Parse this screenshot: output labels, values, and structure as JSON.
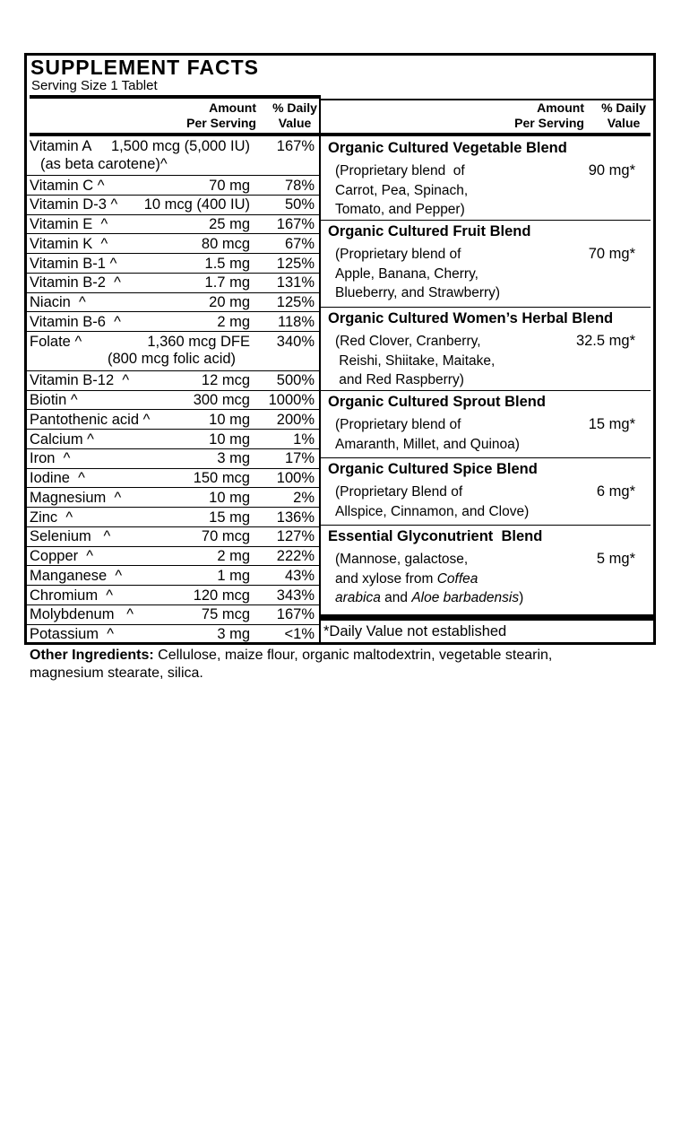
{
  "header": {
    "title": "SUPPLEMENT FACTS",
    "serving_size": "Serving Size 1 Tablet"
  },
  "column_headers": {
    "amount": [
      "Amount",
      "Per Serving"
    ],
    "daily_value": [
      "% Daily",
      "Value"
    ]
  },
  "nutrients": [
    {
      "name": "Vitamin A",
      "amount": "1,500 mcg (5,000 IU)",
      "daily_value": "167%",
      "note": "(as beta carotene)^"
    },
    {
      "name": "Vitamin C ^",
      "amount": "70 mg",
      "daily_value": "78%"
    },
    {
      "name": "Vitamin D-3 ^",
      "amount": "10 mcg (400 IU)",
      "daily_value": "50%"
    },
    {
      "name": "Vitamin E  ^",
      "amount": "25 mg",
      "daily_value": "167%"
    },
    {
      "name": "Vitamin K  ^",
      "amount": "80 mcg",
      "daily_value": "67%"
    },
    {
      "name": "Vitamin B-1 ^",
      "amount": "1.5 mg",
      "daily_value": "125%"
    },
    {
      "name": "Vitamin B-2  ^",
      "amount": "1.7 mg",
      "daily_value": "131%"
    },
    {
      "name": "Niacin  ^",
      "amount": "20 mg",
      "daily_value": "125%"
    },
    {
      "name": "Vitamin B-6  ^",
      "amount": "2 mg",
      "daily_value": "118%"
    },
    {
      "name": "Folate ^",
      "amount": "1,360 mcg DFE",
      "daily_value": "340%",
      "note": "(800 mcg folic acid)"
    },
    {
      "name": "Vitamin B-12  ^",
      "amount": "12 mcg",
      "daily_value": "500%"
    },
    {
      "name": "Biotin ^",
      "amount": "300 mcg",
      "daily_value": "1000%"
    },
    {
      "name": "Pantothenic acid ^",
      "amount": "10 mg",
      "daily_value": "200%"
    },
    {
      "name": "Calcium ^",
      "amount": "10 mg",
      "daily_value": "1%"
    },
    {
      "name": "Iron  ^",
      "amount": "3 mg",
      "daily_value": "17%"
    },
    {
      "name": "Iodine  ^",
      "amount": "150 mcg",
      "daily_value": "100%"
    },
    {
      "name": "Magnesium  ^",
      "amount": "10 mg",
      "daily_value": "2%"
    },
    {
      "name": "Zinc  ^",
      "amount": "15 mg",
      "daily_value": "136%"
    },
    {
      "name": "Selenium   ^",
      "amount": "70 mcg",
      "daily_value": "127%"
    },
    {
      "name": "Copper  ^",
      "amount": "2 mg",
      "daily_value": "222%"
    },
    {
      "name": "Manganese  ^",
      "amount": "1 mg",
      "daily_value": "43%"
    },
    {
      "name": "Chromium  ^",
      "amount": "120 mcg",
      "daily_value": "343%"
    },
    {
      "name": "Molybdenum   ^",
      "amount": "75 mcg",
      "daily_value": "167%"
    },
    {
      "name": "Potassium  ^",
      "amount": "3 mg",
      "daily_value": "<1%"
    }
  ],
  "blends": [
    {
      "name": "Organic Cultured Vegetable Blend",
      "amount": "90 mg*",
      "description": [
        "(Proprietary blend  of",
        "Carrot, Pea, Spinach,",
        "Tomato, and Pepper)"
      ]
    },
    {
      "name": "Organic Cultured Fruit Blend",
      "amount": "70 mg*",
      "description": [
        "(Proprietary blend of",
        "Apple, Banana, Cherry,",
        "Blueberry, and Strawberry)"
      ]
    },
    {
      "name": "Organic Cultured Women’s Herbal Blend",
      "amount": "32.5 mg*",
      "description": [
        "(Red Clover, Cranberry,",
        " Reishi, Shiitake, Maitake,",
        " and Red Raspberry)"
      ]
    },
    {
      "name": "Organic Cultured Sprout Blend",
      "amount": "15 mg*",
      "description": [
        "(Proprietary blend of",
        "Amaranth, Millet, and Quinoa)"
      ]
    },
    {
      "name": "Organic Cultured Spice Blend",
      "amount": "6 mg*",
      "description": [
        "(Proprietary Blend of",
        "Allspice, Cinnamon, and Clove)"
      ]
    },
    {
      "name": "Essential Glyconutrient  Blend",
      "amount": "5 mg*",
      "description": [
        "(Mannose, galactose,",
        [
          {
            "text": "and xylose from "
          },
          {
            "text": "Coffea",
            "italic": true
          }
        ],
        [
          {
            "text": "arabica",
            "italic": true
          },
          {
            "text": " and "
          },
          {
            "text": "Aloe barbadensis",
            "italic": true
          },
          {
            "text": ")"
          }
        ]
      ]
    }
  ],
  "footnote": "*Daily Value not established",
  "other_ingredients": {
    "label": "Other Ingredients:",
    "text": " Cellulose, maize flour, organic maltodextrin, vegetable stearin, magnesium stearate, silica."
  }
}
